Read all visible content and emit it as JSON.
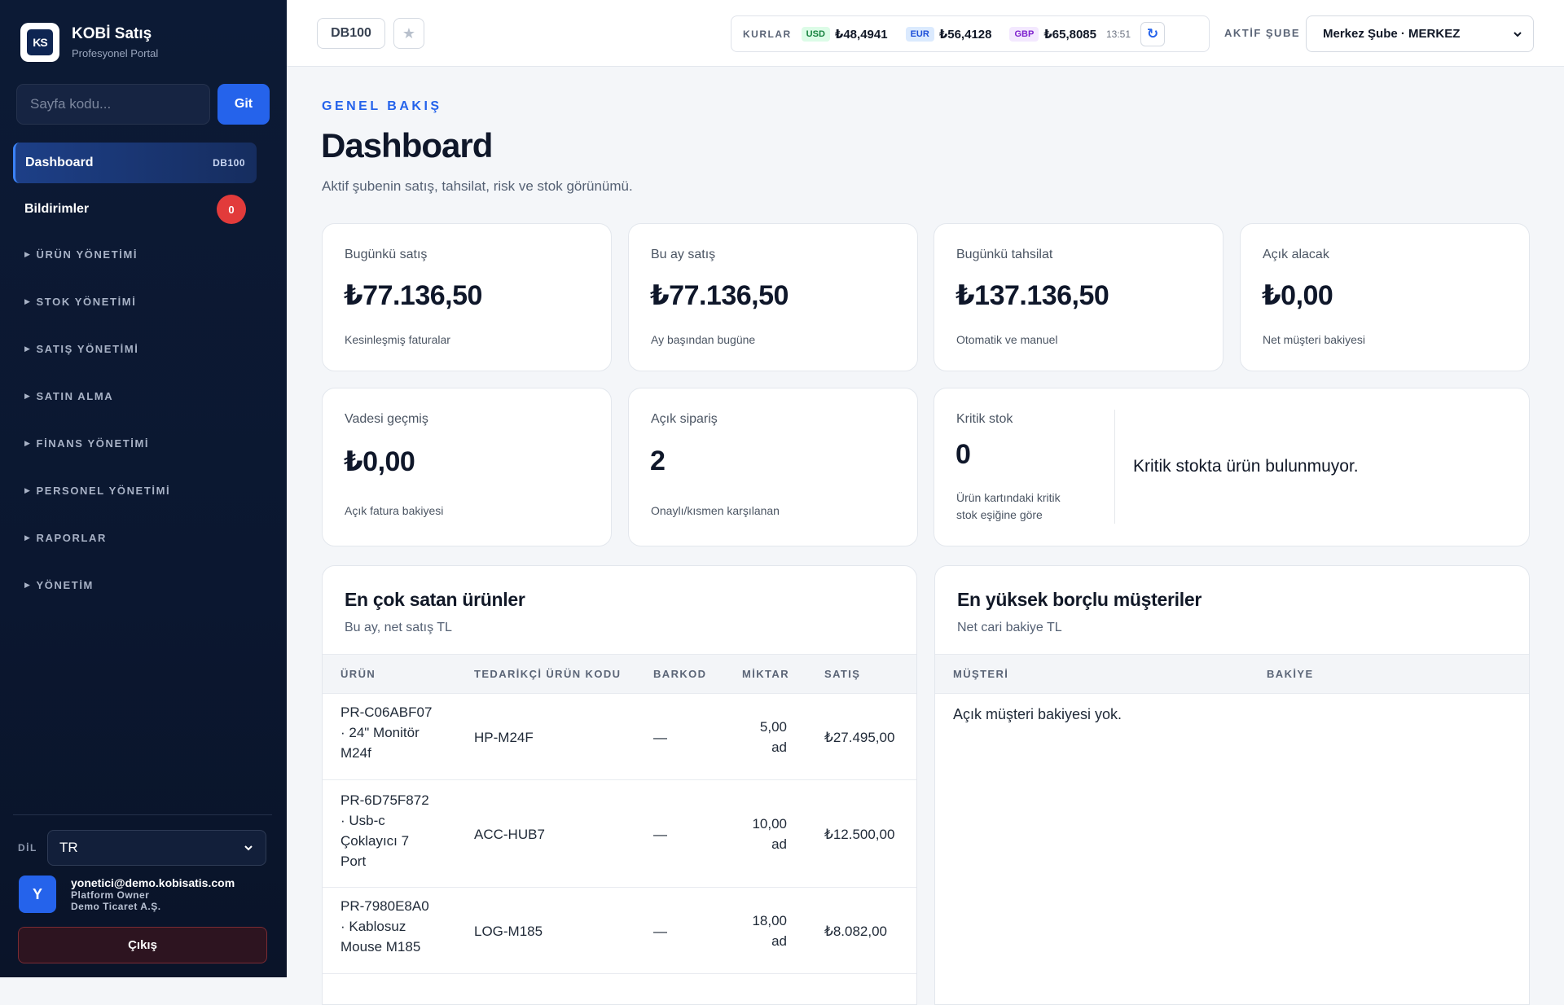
{
  "brand": {
    "logo_text": "KS",
    "title": "KOBİ Satış",
    "subtitle": "Profesyonel Portal"
  },
  "search": {
    "placeholder": "Sayfa kodu...",
    "button": "Git"
  },
  "nav": {
    "active": {
      "label": "Dashboard",
      "code": "DB100"
    },
    "notifications": {
      "label": "Bildirimler",
      "count": "0"
    },
    "sections": [
      "ÜRÜN YÖNETİMİ",
      "STOK YÖNETİMİ",
      "SATIŞ YÖNETİMİ",
      "SATIN ALMA",
      "FİNANS YÖNETİMİ",
      "PERSONEL YÖNETİMİ",
      "RAPORLAR",
      "YÖNETİM"
    ]
  },
  "language": {
    "label": "DİL",
    "value": "TR"
  },
  "user": {
    "initial": "Y",
    "email": "yonetici@demo.kobisatis.com",
    "role": "Platform Owner",
    "company": "Demo Ticaret A.Ş."
  },
  "logout": "Çıkış",
  "topbar": {
    "page_code": "DB100",
    "rates_label": "KURLAR",
    "rates": [
      {
        "code": "USD",
        "value": "₺48,4941"
      },
      {
        "code": "EUR",
        "value": "₺56,4128"
      },
      {
        "code": "GBP",
        "value": "₺65,8085"
      }
    ],
    "rates_time": "13:51",
    "branch_label": "AKTİF ŞUBE",
    "branch_value": "Merkez Şube · MERKEZ"
  },
  "header": {
    "kicker": "GENEL BAKIŞ",
    "title": "Dashboard",
    "description": "Aktif şubenin satış, tahsilat, risk ve stok görünümü."
  },
  "kpis": {
    "today_sales": {
      "label": "Bugünkü satış",
      "value": "₺77.136,50",
      "sub": "Kesinleşmiş faturalar"
    },
    "month_sales": {
      "label": "Bu ay satış",
      "value": "₺77.136,50",
      "sub": "Ay başından bugüne"
    },
    "today_collection": {
      "label": "Bugünkü tahsilat",
      "value": "₺137.136,50",
      "sub": "Otomatik ve manuel"
    },
    "open_receivable": {
      "label": "Açık alacak",
      "value": "₺0,00",
      "sub": "Net müşteri bakiyesi"
    },
    "overdue": {
      "label": "Vadesi geçmiş",
      "value": "₺0,00",
      "sub": "Açık fatura bakiyesi"
    },
    "open_orders": {
      "label": "Açık sipariş",
      "value": "2",
      "sub": "Onaylı/kısmen karşılanan"
    },
    "critical_stock": {
      "label": "Kritik stok",
      "value": "0",
      "sub_line1": "Ürün kartındaki kritik",
      "sub_line2": "stok eşiğine göre",
      "message": "Kritik stokta ürün bulunmuyor."
    }
  },
  "top_products": {
    "title": "En çok satan ürünler",
    "subtitle": "Bu ay, net satış TL",
    "columns": [
      "ÜRÜN",
      "TEDARİKÇİ ÜRÜN KODU",
      "BARKOD",
      "MİKTAR",
      "SATIŞ"
    ],
    "rows": [
      {
        "product_lines": [
          "PR-C06ABF07",
          "· 24\" Monitör",
          "M24f"
        ],
        "supplier_code": "HP-M24F",
        "barcode": "—",
        "qty_lines": [
          "5,00",
          "ad"
        ],
        "sales": "₺27.495,00"
      },
      {
        "product_lines": [
          "PR-6D75F872",
          "· Usb-c",
          "Çoklayıcı 7",
          "Port"
        ],
        "supplier_code": "ACC-HUB7",
        "barcode": "—",
        "qty_lines": [
          "10,00",
          "ad"
        ],
        "sales": "₺12.500,00"
      },
      {
        "product_lines": [
          "PR-7980E8A0",
          "· Kablosuz",
          "Mouse M185"
        ],
        "supplier_code": "LOG-M185",
        "barcode": "—",
        "qty_lines": [
          "18,00",
          "ad"
        ],
        "sales": "₺8.082,00"
      }
    ]
  },
  "top_debtors": {
    "title": "En yüksek borçlu müşteriler",
    "subtitle": "Net cari bakiye TL",
    "columns": [
      "MÜŞTERİ",
      "BAKİYE"
    ],
    "empty": "Açık müşteri bakiyesi yok."
  }
}
